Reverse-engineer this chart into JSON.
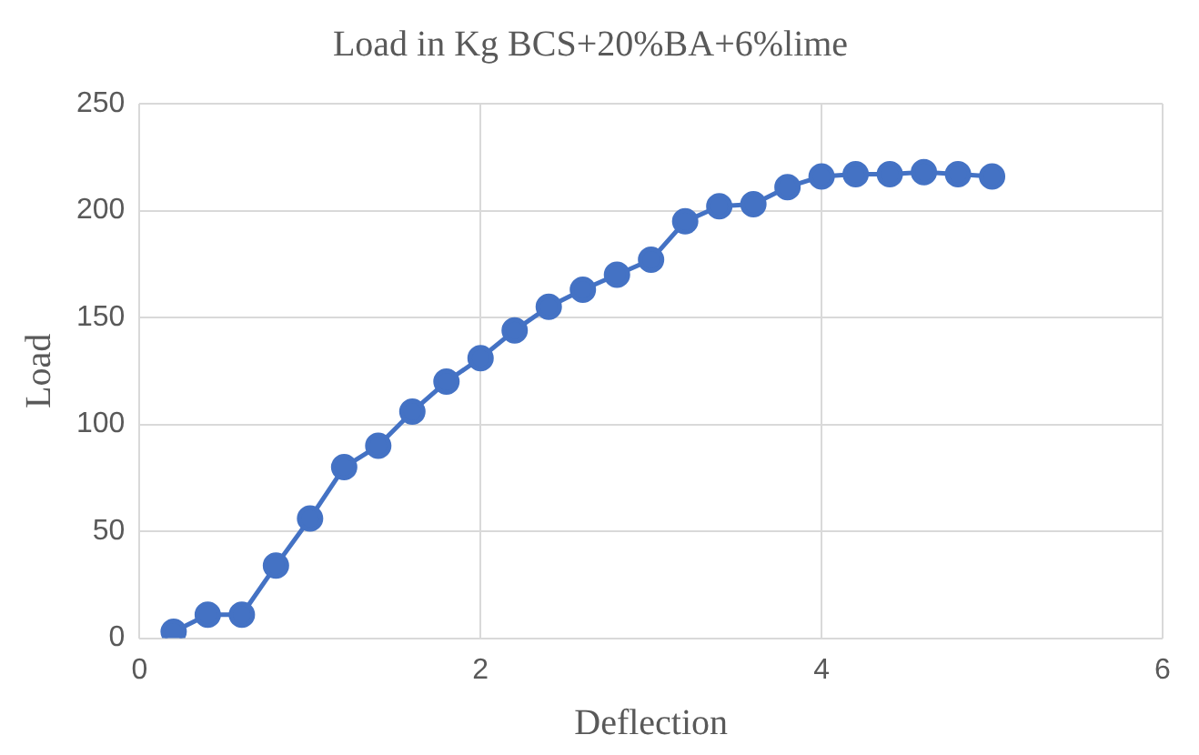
{
  "chart_data": {
    "type": "line",
    "title": "Load in Kg BCS+20%BA+6%lime",
    "xlabel": "Deflection",
    "ylabel": "Load",
    "x": [
      0.2,
      0.4,
      0.6,
      0.8,
      1.0,
      1.2,
      1.4,
      1.6,
      1.8,
      2.0,
      2.2,
      2.4,
      2.6,
      2.8,
      3.0,
      3.2,
      3.4,
      3.6,
      3.8,
      4.0,
      4.2,
      4.4,
      4.6,
      4.8,
      5.0
    ],
    "series": [
      {
        "color": "#4472c4",
        "values": [
          3,
          11,
          11,
          34,
          56,
          80,
          90,
          106,
          120,
          131,
          144,
          155,
          163,
          170,
          177,
          195,
          202,
          203,
          211,
          216,
          217,
          217,
          218,
          217,
          216
        ]
      }
    ],
    "xlim": [
      0,
      6
    ],
    "xticks": [
      0,
      2,
      4,
      6
    ],
    "ylim": [
      0,
      250
    ],
    "yticks": [
      0,
      50,
      100,
      150,
      200,
      250
    ],
    "grid": true,
    "marker": "circle",
    "line_style": "solid",
    "legend": false
  }
}
